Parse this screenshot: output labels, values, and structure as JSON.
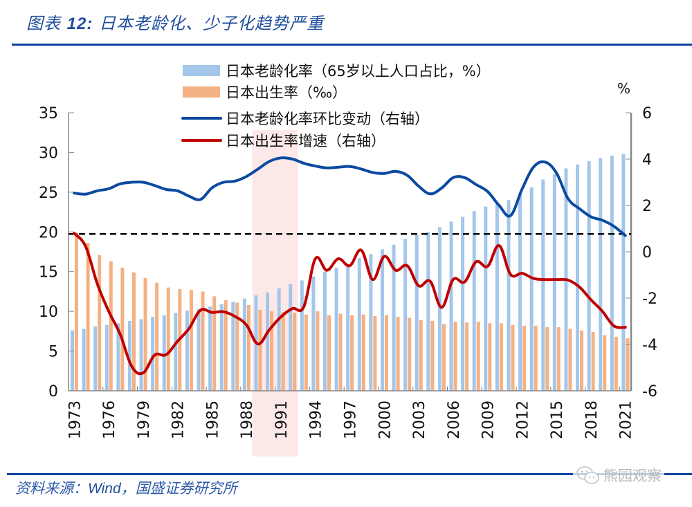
{
  "header": {
    "title_prefix": "图表",
    "title_number": "12:",
    "title_text": "日本老龄化、少子化趋势严重"
  },
  "footer": {
    "source_prefix": "资料来源：",
    "source_wind": "Wind",
    "source_suffix": "，国盛证券研究所",
    "watermark_text": "熊园观察",
    "watermark_icon": "wechat-icon"
  },
  "colors": {
    "aging_bar": "#a4c6ea",
    "birth_bar": "#f4b183",
    "aging_line": "#0b4aa0",
    "birth_line": "#c00000",
    "highlight": "#fde4e4",
    "title": "#1f4e9c"
  },
  "chart_data": {
    "type": "bar+line",
    "title": "日本老龄化、少子化趋势严重",
    "right_axis_unit": "%",
    "left_axis": {
      "ylim": [
        0,
        35
      ],
      "ticks": [
        "0",
        "5",
        "10",
        "15",
        "20",
        "25",
        "30",
        "35"
      ]
    },
    "right_axis": {
      "ylim": [
        -6,
        6
      ],
      "ticks": [
        "-6",
        "-4",
        "-2",
        "0",
        "2",
        "4",
        "6"
      ]
    },
    "x_tick_labels": [
      "1973",
      "1976",
      "1979",
      "1982",
      "1985",
      "1988",
      "1991",
      "1994",
      "1997",
      "2000",
      "2003",
      "2006",
      "2009",
      "2012",
      "2015",
      "2018",
      "2021"
    ],
    "categories": [
      "1973",
      "1974",
      "1975",
      "1976",
      "1977",
      "1978",
      "1979",
      "1980",
      "1981",
      "1982",
      "1983",
      "1984",
      "1985",
      "1986",
      "1987",
      "1988",
      "1989",
      "1990",
      "1991",
      "1992",
      "1993",
      "1994",
      "1995",
      "1996",
      "1997",
      "1998",
      "1999",
      "2000",
      "2001",
      "2002",
      "2003",
      "2004",
      "2005",
      "2006",
      "2007",
      "2008",
      "2009",
      "2010",
      "2011",
      "2012",
      "2013",
      "2014",
      "2015",
      "2016",
      "2017",
      "2018",
      "2019",
      "2020",
      "2021"
    ],
    "highlight_range": [
      "1989",
      "1992"
    ],
    "reference_line": {
      "axis": "right",
      "value": 0.77,
      "style": "dashed"
    },
    "grid": false,
    "legend_position": "top",
    "series": [
      {
        "name": "日本老龄化率（65岁以上人口占比，%）",
        "type": "bar",
        "axis": "left",
        "values": [
          7.6,
          7.8,
          8.1,
          8.3,
          8.5,
          8.8,
          9.0,
          9.3,
          9.5,
          9.8,
          10.1,
          10.3,
          10.6,
          10.9,
          11.2,
          11.6,
          12.0,
          12.4,
          12.9,
          13.4,
          13.9,
          14.4,
          15.0,
          15.5,
          15.9,
          16.7,
          17.2,
          17.8,
          18.4,
          19.1,
          19.6,
          20.0,
          20.6,
          21.3,
          21.9,
          22.6,
          23.2,
          23.6,
          24.0,
          24.7,
          25.6,
          26.6,
          27.3,
          28.0,
          28.5,
          28.9,
          29.3,
          29.6,
          29.8
        ]
      },
      {
        "name": "日本出生率（‰）",
        "type": "bar",
        "axis": "left",
        "values": [
          19.9,
          18.6,
          17.1,
          16.3,
          15.5,
          14.9,
          14.2,
          13.6,
          13.0,
          12.8,
          12.7,
          12.5,
          11.9,
          11.4,
          11.1,
          10.8,
          10.2,
          10.0,
          9.9,
          9.8,
          9.6,
          10.0,
          9.5,
          9.7,
          9.5,
          9.6,
          9.4,
          9.5,
          9.3,
          9.2,
          8.9,
          8.8,
          8.4,
          8.7,
          8.6,
          8.7,
          8.5,
          8.5,
          8.3,
          8.2,
          8.2,
          8.0,
          8.0,
          7.8,
          7.6,
          7.4,
          7.0,
          6.8,
          6.6
        ]
      },
      {
        "name": "日本老龄化率环比变动（右轴）",
        "type": "line",
        "axis": "right",
        "values": [
          2.53,
          2.49,
          2.63,
          2.72,
          2.93,
          3.0,
          3.0,
          2.86,
          2.69,
          2.63,
          2.4,
          2.26,
          2.76,
          3.0,
          3.05,
          3.25,
          3.57,
          3.9,
          4.05,
          4.0,
          3.82,
          3.7,
          3.62,
          3.65,
          3.68,
          3.57,
          3.42,
          3.38,
          3.47,
          3.3,
          2.83,
          2.5,
          2.75,
          3.2,
          3.2,
          2.9,
          2.6,
          2.0,
          1.56,
          2.7,
          3.65,
          3.87,
          3.4,
          2.3,
          1.86,
          1.51,
          1.36,
          1.1,
          0.7
        ]
      },
      {
        "name": "日本出生率增速（右轴）",
        "type": "line",
        "axis": "right",
        "values": [
          0.8,
          0.22,
          -1.37,
          -2.57,
          -3.56,
          -4.94,
          -5.23,
          -4.46,
          -4.44,
          -3.86,
          -3.31,
          -2.52,
          -2.62,
          -2.59,
          -2.79,
          -3.16,
          -3.98,
          -3.36,
          -2.81,
          -2.45,
          -2.37,
          -0.3,
          -0.8,
          -0.3,
          -0.6,
          0.07,
          -1.2,
          -0.2,
          -0.8,
          -0.6,
          -1.47,
          -1.27,
          -2.4,
          -1.2,
          -1.3,
          -0.43,
          -0.63,
          0.27,
          -0.98,
          -0.93,
          -1.15,
          -1.2,
          -1.2,
          -1.22,
          -1.52,
          -2.07,
          -2.57,
          -3.2,
          -3.26
        ]
      }
    ]
  }
}
